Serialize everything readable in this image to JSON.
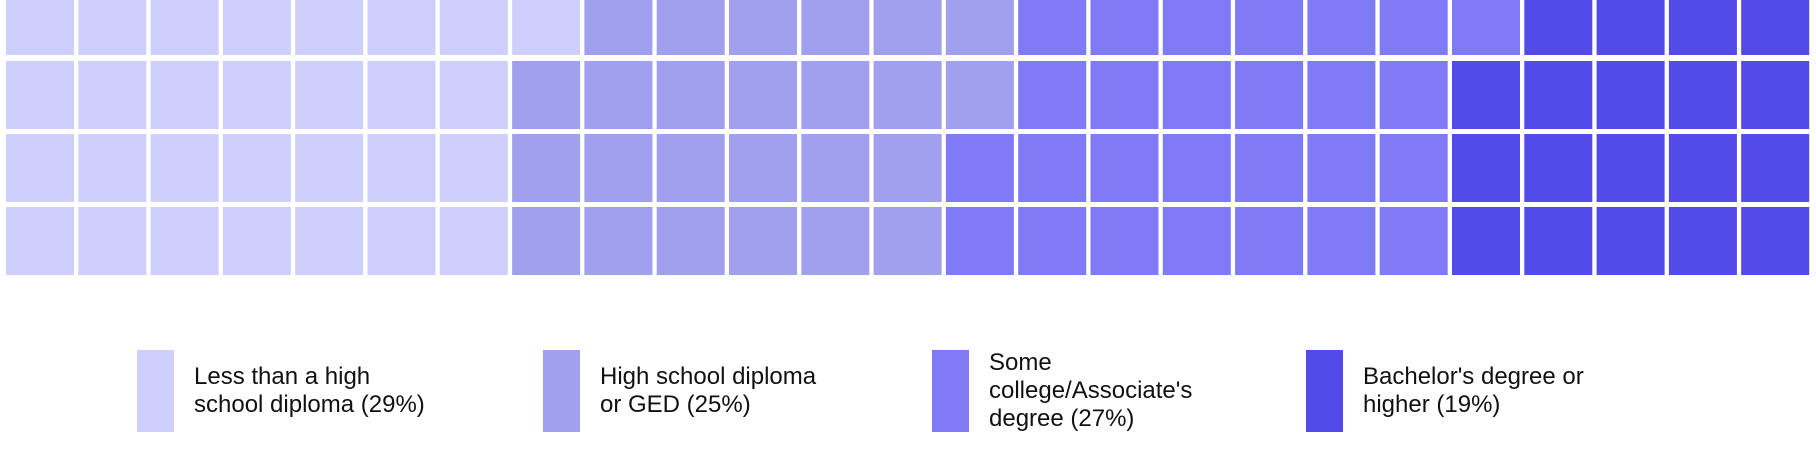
{
  "chart_data": {
    "type": "waffle",
    "grid": {
      "rows": 4,
      "columns": 25,
      "total_cells": 100
    },
    "fill_order": "column-major, top-to-bottom, left-to-right",
    "categories": [
      {
        "label": "Less than a high\nschool diploma (29%)",
        "value": 29,
        "color": "#cfcffd"
      },
      {
        "label": "High school diploma\nor GED (25%)",
        "value": 25,
        "color": "#a1a0ee"
      },
      {
        "label": "Some\ncollege/Associate's\ndegree (27%)",
        "value": 27,
        "color": "#7f7bf7"
      },
      {
        "label": "Bachelor's degree or\nhigher (19%)",
        "value": 19,
        "color": "#524ae9"
      }
    ],
    "legend_position": "bottom"
  }
}
